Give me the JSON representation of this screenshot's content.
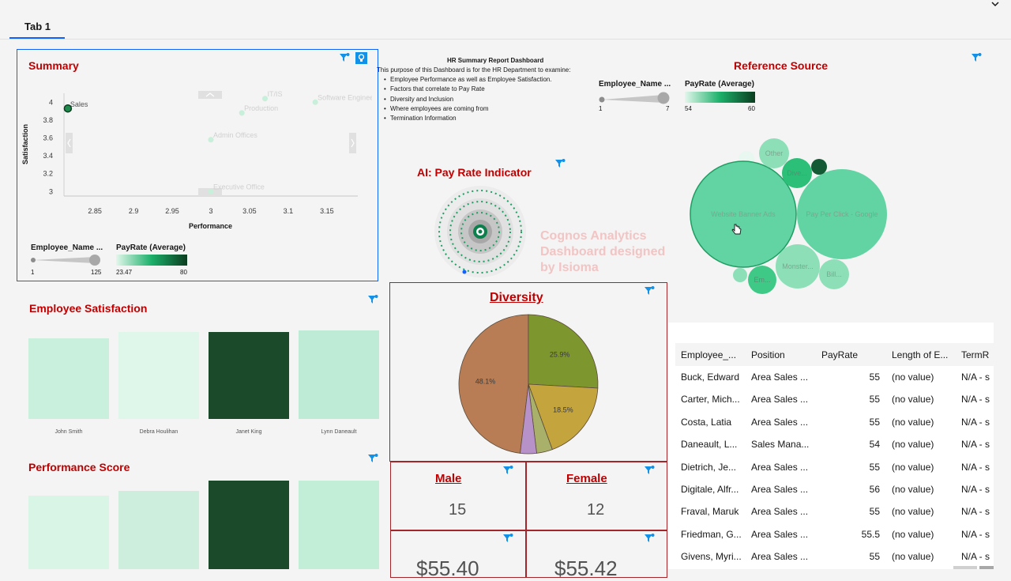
{
  "tabs": [
    {
      "label": "Tab 1"
    }
  ],
  "summary": {
    "title": "Summary",
    "ylabel": "Satisfaction",
    "xlabel": "Performance",
    "legend": {
      "size_title": "Employee_Name ...",
      "size_min": "1",
      "size_max": "125",
      "color_title": "PayRate (Average)",
      "color_min": "23.47",
      "color_max": "80"
    }
  },
  "chart_data": [
    {
      "type": "scatter",
      "title": "Summary",
      "xlabel": "Performance",
      "ylabel": "Satisfaction",
      "x_ticks": [
        "2.85",
        "2.9",
        "2.95",
        "3",
        "3.05",
        "3.1",
        "3.15"
      ],
      "y_ticks": [
        "4",
        "3.8",
        "3.6",
        "3.4",
        "3.2",
        "3"
      ],
      "xlim": [
        2.81,
        3.19
      ],
      "ylim": [
        2.95,
        4.1
      ],
      "points": [
        {
          "label": "Sales",
          "x": 2.815,
          "y": 3.93,
          "highlight": true
        },
        {
          "label": "IT/IS",
          "x": 3.07,
          "y": 4.04,
          "highlight": false
        },
        {
          "label": "Software Engineering",
          "x": 3.135,
          "y": 4.0,
          "highlight": false
        },
        {
          "label": "Production",
          "x": 3.04,
          "y": 3.88,
          "highlight": false
        },
        {
          "label": "Admin Offices",
          "x": 3.0,
          "y": 3.58,
          "highlight": false
        },
        {
          "label": "Executive Office",
          "x": 3.0,
          "y": 3.0,
          "highlight": false
        }
      ]
    },
    {
      "type": "pie",
      "title": "Diversity",
      "slices": [
        {
          "label": "48.1%",
          "value": 48.1,
          "color": "#b87d55"
        },
        {
          "label": "25.9%",
          "value": 25.9,
          "color": "#7e962e"
        },
        {
          "label": "18.5%",
          "value": 18.5,
          "color": "#c3a43d"
        },
        {
          "label": "",
          "value": 3.7,
          "color": "#a8b06a"
        },
        {
          "label": "",
          "value": 3.8,
          "color": "#b692c9"
        }
      ]
    }
  ],
  "report": {
    "title": "HR Summary Report Dashboard",
    "intro": "This purpose of this Dashboard is for the HR Department to examine:",
    "bullets": [
      "Employee Performance as well as Employee Satisfaction.",
      "Factors that correlate to Pay Rate",
      "Diversity and Inclusion",
      "Where employees are coming from",
      "Termination Information"
    ],
    "legend": {
      "size_title": "Employee_Name ...",
      "size_min": "1",
      "size_max": "7",
      "color_title": "PayRate (Average)",
      "color_min": "54",
      "color_max": "60"
    }
  },
  "reference": {
    "title": "Reference Source",
    "bubbles": [
      {
        "label": "Website Banner Ads"
      },
      {
        "label": "Pay Per Click - Google"
      },
      {
        "label": "Other"
      },
      {
        "label": "Dive..."
      },
      {
        "label": "Monster..."
      },
      {
        "label": "Bill..."
      },
      {
        "label": "Em..."
      }
    ]
  },
  "ai": {
    "title": "AI: Pay Rate Indicator",
    "watermark": [
      "Cognos Analytics",
      "Dashboard designed",
      "by Isioma"
    ]
  },
  "satisfaction": {
    "title": "Employee Satisfaction",
    "items": [
      {
        "name": "John Smith",
        "color": "#c9efdd"
      },
      {
        "name": "Debra Houlihan",
        "color": "#dff7ea"
      },
      {
        "name": "Janet King",
        "color": "#1b4a2b"
      },
      {
        "name": "Lynn Daneault",
        "color": "#bdebd5"
      }
    ]
  },
  "performance": {
    "title": "Performance Score",
    "colors": [
      "#d9f5e6",
      "#cdeedd",
      "#1b4a2b",
      "#c2edd7"
    ]
  },
  "diversity": {
    "title": "Diversity "
  },
  "male": {
    "title": "Male",
    "value": "15"
  },
  "female": {
    "title": "Female",
    "value": "12"
  },
  "pay_left": {
    "value": "$55.40"
  },
  "pay_right": {
    "value": "$55.42"
  },
  "table": {
    "columns": [
      "Employee_...",
      "Position",
      "PayRate",
      "Length of E...",
      "TermR"
    ],
    "rows": [
      {
        "name": "Buck, Edward",
        "position": "Area Sales ...",
        "pay": "55",
        "length": "(no value)",
        "term": "N/A - s"
      },
      {
        "name": "Carter, Mich...",
        "position": "Area Sales ...",
        "pay": "55",
        "length": "(no value)",
        "term": "N/A - s"
      },
      {
        "name": "Costa, Latia",
        "position": "Area Sales ...",
        "pay": "55",
        "length": "(no value)",
        "term": "N/A - s"
      },
      {
        "name": "Daneault, L...",
        "position": "Sales Mana...",
        "pay": "54",
        "length": "(no value)",
        "term": "N/A - s"
      },
      {
        "name": "Dietrich, Je...",
        "position": "Area Sales ...",
        "pay": "55",
        "length": "(no value)",
        "term": "N/A - s"
      },
      {
        "name": "Digitale, Alfr...",
        "position": "Area Sales ...",
        "pay": "56",
        "length": "(no value)",
        "term": "N/A - s"
      },
      {
        "name": "Fraval, Maruk",
        "position": "Area Sales ...",
        "pay": "55",
        "length": "(no value)",
        "term": "N/A - s"
      },
      {
        "name": "Friedman, G...",
        "position": "Area Sales ...",
        "pay": "55.5",
        "length": "(no value)",
        "term": "N/A - s"
      },
      {
        "name": "Givens, Myri...",
        "position": "Area Sales ...",
        "pay": "55",
        "length": "(no value)",
        "term": "N/A - s"
      }
    ]
  },
  "colors": {
    "title_red": "#c00000",
    "accent_blue": "#0f62fe",
    "filter_blue": "#1192e8"
  },
  "icons": [
    "filter-icon",
    "chevron-down-icon",
    "lightbulb-icon",
    "cursor-hand-icon"
  ]
}
